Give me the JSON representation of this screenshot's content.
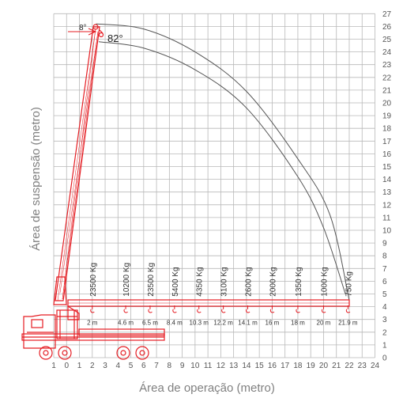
{
  "chart_data": {
    "type": "diagram",
    "xlabel": "Área de operação (metro)",
    "ylabel": "Área de suspensão (metro)",
    "xlim": [
      1,
      24
    ],
    "ylim": [
      0,
      27
    ],
    "x_ticks": [
      "1",
      "0",
      "1",
      "2",
      "3",
      "4",
      "5",
      "6",
      "7",
      "8",
      "9",
      "10",
      "11",
      "12",
      "13",
      "14",
      "15",
      "16",
      "17",
      "18",
      "19",
      "20",
      "21",
      "22",
      "23",
      "24"
    ],
    "y_ticks": [
      "0",
      "1",
      "2",
      "3",
      "4",
      "5",
      "6",
      "7",
      "8",
      "9",
      "10",
      "11",
      "12",
      "13",
      "14",
      "15",
      "16",
      "17",
      "18",
      "19",
      "20",
      "21",
      "22",
      "23",
      "24",
      "25",
      "26",
      "27"
    ],
    "boom_angle_labels": [
      "8°",
      "82°"
    ],
    "load_points": [
      {
        "reach": "2 m",
        "capacity": "23500 Kg"
      },
      {
        "reach": "4.6 m",
        "capacity": "10200 Kg"
      },
      {
        "reach": "6.5 m",
        "capacity": "23500 Kg"
      },
      {
        "reach": "8.4 m",
        "capacity": "5400 Kg"
      },
      {
        "reach": "10.3 m",
        "capacity": "4350 Kg"
      },
      {
        "reach": "12.2 m",
        "capacity": "3100 Kg"
      },
      {
        "reach": "14.1 m",
        "capacity": "2600 Kg"
      },
      {
        "reach": "16 m",
        "capacity": "2000 Kg"
      },
      {
        "reach": "18 m",
        "capacity": "1350 Kg"
      },
      {
        "reach": "20 m",
        "capacity": "1000 Kg"
      },
      {
        "reach": "21.9 m",
        "capacity": "750 Kg"
      }
    ],
    "envelope_outer": [
      [
        2.3,
        26.2
      ],
      [
        6,
        25.8
      ],
      [
        10,
        24
      ],
      [
        14,
        20.9
      ],
      [
        18,
        15.6
      ],
      [
        20.5,
        11.2
      ],
      [
        22,
        4.5
      ]
    ],
    "envelope_inner": [
      [
        2.5,
        24.8
      ],
      [
        6,
        24.3
      ],
      [
        10,
        22.6
      ],
      [
        14,
        19.6
      ],
      [
        18,
        14.2
      ],
      [
        20,
        10.2
      ],
      [
        21.7,
        5
      ]
    ],
    "colors": {
      "grid": "#b8b8b8",
      "crane": "#e51d23",
      "curve": "#555555",
      "axis_text": "#555555",
      "title": "#808080"
    }
  }
}
